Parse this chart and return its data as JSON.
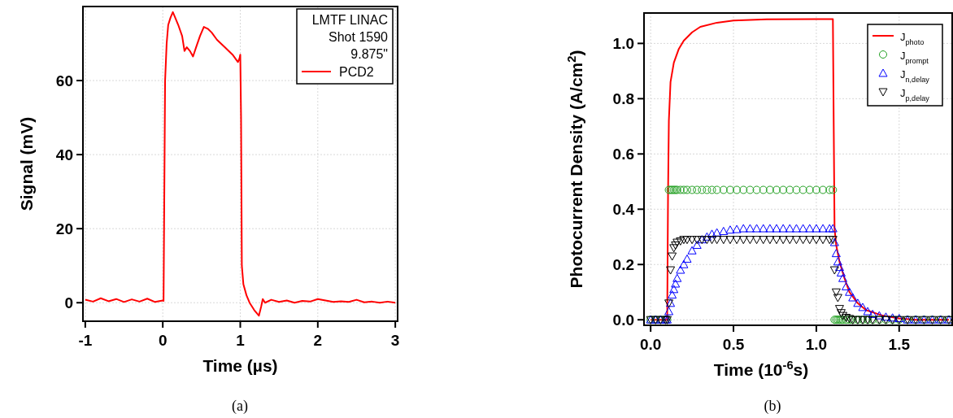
{
  "chart_data": [
    {
      "type": "line",
      "xlabel": "Time (µs)",
      "ylabel": "Signal (mV)",
      "legend_title": "LMTF LINAC\nShot 1590\n9.875\"",
      "legend": "top right",
      "grid": true,
      "xlim": [
        -1.03,
        3.03
      ],
      "xticks": [
        -1,
        0,
        1,
        2,
        3
      ],
      "ylim": [
        -5,
        80
      ],
      "yticks": [
        0,
        20,
        40,
        60
      ],
      "annotations": [
        "(a)"
      ],
      "x": [
        -1,
        -0.9,
        -0.8,
        -0.7,
        -0.6,
        -0.5,
        -0.4,
        -0.3,
        -0.2,
        -0.1,
        0,
        0.01,
        0.02,
        0.03,
        0.05,
        0.07,
        0.1,
        0.13,
        0.16,
        0.2,
        0.25,
        0.28,
        0.31,
        0.35,
        0.39,
        0.43,
        0.48,
        0.53,
        0.58,
        0.63,
        0.7,
        0.8,
        0.9,
        0.97,
        0.99,
        1.0,
        1.01,
        1.02,
        1.04,
        1.08,
        1.12,
        1.18,
        1.24,
        1.27,
        1.29,
        1.32,
        1.4,
        1.5,
        1.6,
        1.7,
        1.8,
        1.9,
        2.0,
        2.1,
        2.2,
        2.3,
        2.4,
        2.5,
        2.6,
        2.7,
        2.8,
        2.9,
        3.0
      ],
      "series": [
        {
          "name": "PCD2",
          "color": "#ff0000",
          "values": [
            0.8,
            0.3,
            1.2,
            0.4,
            1.0,
            0.2,
            0.9,
            0.3,
            1.1,
            0.2,
            0.6,
            0.5,
            30,
            60,
            70,
            75,
            77,
            78.5,
            77,
            75,
            72,
            68,
            69,
            68,
            66.5,
            69,
            72,
            74.5,
            74,
            73,
            71,
            69,
            67,
            65,
            66,
            67,
            50,
            10,
            5,
            2,
            0,
            -2,
            -3.5,
            -1,
            1,
            0,
            0.8,
            0.2,
            0.6,
            0,
            0.5,
            0.3,
            1.0,
            0.6,
            0.2,
            0.4,
            0.2,
            0.8,
            0.1,
            0.3,
            0,
            0.3,
            0
          ]
        }
      ]
    },
    {
      "type": "scatter",
      "xlabel": "Time (10$^{-6}$s)",
      "ylabel": "Photocurrent Density (A/cm$^{2}$)",
      "legend": "top right",
      "grid": true,
      "xlim": [
        -0.04,
        1.82
      ],
      "xticks": [
        {
          "value": 0,
          "label": "0.0"
        },
        {
          "value": 0.5,
          "label": "0.5"
        },
        {
          "value": 1,
          "label": "1.0"
        },
        {
          "value": 1.5,
          "label": "1.5"
        }
      ],
      "ylim": [
        -0.02,
        1.11
      ],
      "yticks": [
        {
          "value": 0,
          "label": "0.0"
        },
        {
          "value": 0.2,
          "label": "0.2"
        },
        {
          "value": 0.4,
          "label": "0.4"
        },
        {
          "value": 0.6,
          "label": "0.6"
        },
        {
          "value": 0.8,
          "label": "0.8"
        },
        {
          "value": 1,
          "label": "1.0"
        }
      ],
      "annotations": [
        "(b)"
      ],
      "x": [
        0,
        0.03,
        0.06,
        0.09,
        0.1,
        0.11,
        0.12,
        0.13,
        0.14,
        0.15,
        0.16,
        0.18,
        0.2,
        0.22,
        0.25,
        0.28,
        0.31,
        0.34,
        0.37,
        0.4,
        0.44,
        0.48,
        0.52,
        0.56,
        0.6,
        0.64,
        0.68,
        0.72,
        0.76,
        0.8,
        0.84,
        0.88,
        0.92,
        0.96,
        1.0,
        1.04,
        1.08,
        1.1,
        1.11,
        1.12,
        1.13,
        1.14,
        1.15,
        1.16,
        1.18,
        1.2,
        1.22,
        1.25,
        1.28,
        1.31,
        1.34,
        1.38,
        1.42,
        1.46,
        1.5,
        1.55,
        1.6,
        1.65,
        1.7,
        1.75,
        1.8
      ],
      "series": [
        {
          "name": "J$_{photo}$",
          "type": "line",
          "color": "#ff0000",
          "x": [
            0,
            0.1,
            0.105,
            0.11,
            0.12,
            0.14,
            0.17,
            0.2,
            0.25,
            0.3,
            0.4,
            0.5,
            0.7,
            1.0,
            1.1,
            1.105,
            1.11,
            1.12,
            1.14,
            1.17,
            1.2,
            1.25,
            1.3,
            1.4,
            1.5,
            1.6,
            1.8
          ],
          "values": [
            0,
            0,
            0.45,
            0.72,
            0.86,
            0.93,
            0.98,
            1.01,
            1.04,
            1.06,
            1.075,
            1.083,
            1.087,
            1.088,
            1.088,
            0.7,
            0.33,
            0.27,
            0.21,
            0.15,
            0.1,
            0.06,
            0.035,
            0.015,
            0.005,
            0,
            0
          ]
        },
        {
          "name": "J$_{prompt}$",
          "marker": "circle",
          "color": "#22a022",
          "values": [
            0,
            0,
            0,
            0,
            0,
            0.47,
            0.47,
            0.47,
            0.47,
            0.47,
            0.47,
            0.47,
            0.47,
            0.47,
            0.47,
            0.47,
            0.47,
            0.47,
            0.47,
            0.47,
            0.47,
            0.47,
            0.47,
            0.47,
            0.47,
            0.47,
            0.47,
            0.47,
            0.47,
            0.47,
            0.47,
            0.47,
            0.47,
            0.47,
            0.47,
            0.47,
            0.47,
            0.47,
            0,
            0,
            0,
            0,
            0,
            0,
            0,
            0,
            0,
            0,
            0,
            0,
            0,
            0,
            0,
            0,
            0,
            0,
            0,
            0,
            0,
            0,
            0
          ]
        },
        {
          "name": "J$_{n,delay}$",
          "marker": "triangle",
          "color": "#0000ff",
          "values": [
            0,
            0,
            0,
            0,
            0,
            0.03,
            0.06,
            0.09,
            0.11,
            0.13,
            0.15,
            0.18,
            0.2,
            0.22,
            0.25,
            0.27,
            0.29,
            0.3,
            0.31,
            0.315,
            0.32,
            0.325,
            0.327,
            0.33,
            0.33,
            0.33,
            0.33,
            0.33,
            0.33,
            0.33,
            0.33,
            0.33,
            0.33,
            0.33,
            0.33,
            0.33,
            0.33,
            0.33,
            0.28,
            0.24,
            0.21,
            0.19,
            0.17,
            0.15,
            0.12,
            0.1,
            0.08,
            0.06,
            0.045,
            0.03,
            0.02,
            0.015,
            0.01,
            0.007,
            0.005,
            0,
            0,
            0,
            0,
            0,
            0
          ]
        },
        {
          "name": "J$_{p,delay}$",
          "marker": "triangle-down",
          "color": "#000000",
          "values": [
            0,
            0,
            0,
            0,
            0,
            0.06,
            0.18,
            0.23,
            0.26,
            0.27,
            0.28,
            0.285,
            0.29,
            0.29,
            0.29,
            0.29,
            0.29,
            0.29,
            0.29,
            0.29,
            0.29,
            0.29,
            0.29,
            0.29,
            0.29,
            0.29,
            0.29,
            0.29,
            0.29,
            0.29,
            0.29,
            0.29,
            0.29,
            0.29,
            0.29,
            0.29,
            0.29,
            0.29,
            0.18,
            0.1,
            0.08,
            0.04,
            0.025,
            0.015,
            0.008,
            0.004,
            0,
            0,
            0,
            0,
            0,
            0,
            0,
            0,
            0,
            0,
            0,
            0,
            0,
            0,
            0
          ]
        }
      ]
    }
  ]
}
